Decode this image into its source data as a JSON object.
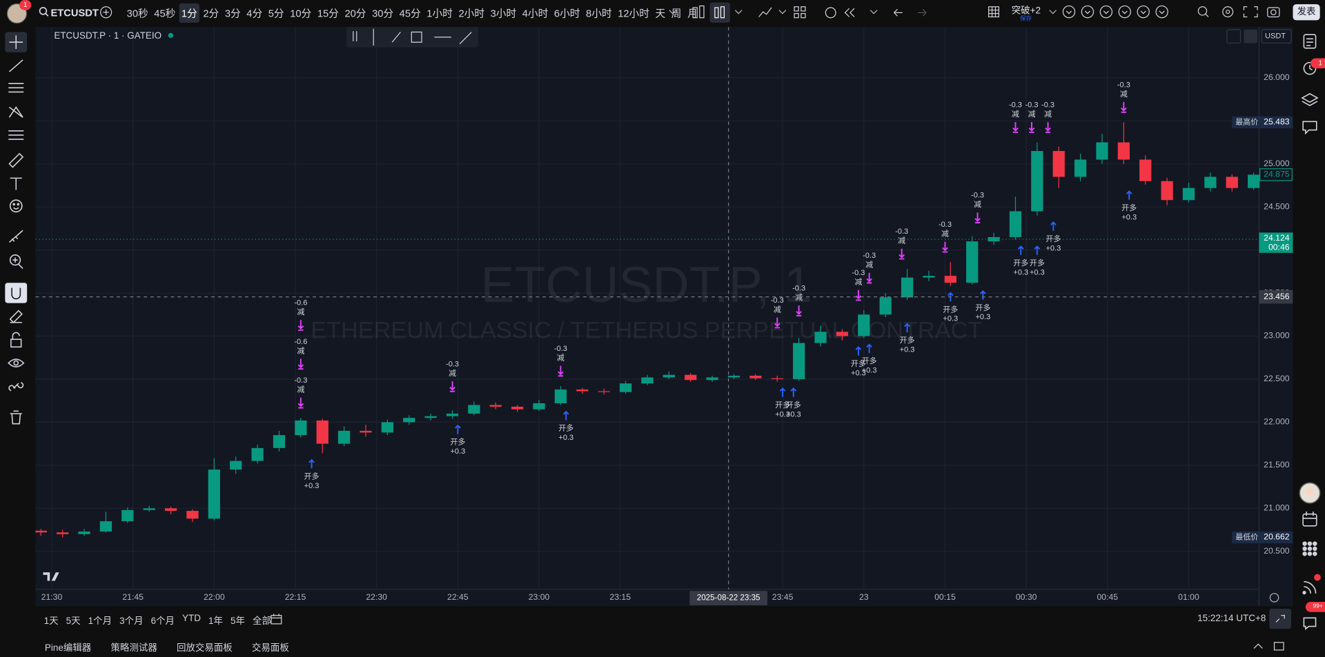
{
  "toolbar": {
    "symbol": "ETCUSDT",
    "badge": "1",
    "intervals": [
      "30秒",
      "45秒",
      "1分",
      "2分",
      "3分",
      "4分",
      "5分",
      "10分",
      "15分",
      "20分",
      "30分",
      "45分",
      "1小时",
      "2小时",
      "3小时",
      "4小时",
      "6小时",
      "8小时",
      "12小时",
      "天",
      "周",
      "月"
    ],
    "active_interval": "1分",
    "strategy": "突破+2",
    "save": "保存",
    "publish": "发表"
  },
  "chart_data": {
    "type": "candlestick",
    "legend": "ETCUSDT.P · 1 · GATEIO",
    "watermark": "ETCUSDT.P, 1",
    "watermark_sub": "ETHEREUM CLASSIC / TETHERUS PERPETUAL CONTRACT",
    "currency": "USDT",
    "up_color": "#089981",
    "down_color": "#f23645",
    "sell_color": "#e040fb",
    "buy_color": "#2962ff",
    "grid": true,
    "x": [
      "21:28",
      "21:32",
      "21:36",
      "21:40",
      "21:44",
      "21:48",
      "21:52",
      "21:56",
      "22:00",
      "22:04",
      "22:08",
      "22:12",
      "22:16",
      "22:20",
      "22:24",
      "22:28",
      "22:32",
      "22:36",
      "22:40",
      "22:44",
      "22:48",
      "22:52",
      "22:56",
      "23:00",
      "23:04",
      "23:08",
      "23:12",
      "23:16",
      "23:20",
      "23:24",
      "23:28",
      "23:32",
      "23:36",
      "23:40",
      "23:44",
      "23:48",
      "23:52",
      "23:56",
      "00:00",
      "00:04",
      "00:08",
      "00:12",
      "00:16",
      "00:20",
      "00:24",
      "00:28",
      "00:32",
      "00:36",
      "00:40",
      "00:44",
      "00:48",
      "00:52",
      "00:56",
      "01:00",
      "01:04",
      "01:08",
      "01:12"
    ],
    "open": [
      20.74,
      20.72,
      20.7,
      20.73,
      20.85,
      20.98,
      21.0,
      20.97,
      20.88,
      21.45,
      21.55,
      21.7,
      21.85,
      22.02,
      21.75,
      21.9,
      21.88,
      22.0,
      22.05,
      22.07,
      22.1,
      22.2,
      22.18,
      22.15,
      22.22,
      22.38,
      22.36,
      22.35,
      22.45,
      22.52,
      22.55,
      22.49,
      22.52,
      22.54,
      22.51,
      22.5,
      22.92,
      23.05,
      23.0,
      23.25,
      23.45,
      23.68,
      23.7,
      23.62,
      24.1,
      24.15,
      24.45,
      25.15,
      24.85,
      25.05,
      25.25,
      25.05,
      24.8,
      24.58,
      24.72,
      24.85,
      24.72
    ],
    "high": [
      20.76,
      20.75,
      20.76,
      20.96,
      21.01,
      21.03,
      21.02,
      20.99,
      21.58,
      21.6,
      21.74,
      21.9,
      22.05,
      22.04,
      21.95,
      21.97,
      22.03,
      22.08,
      22.1,
      22.14,
      22.24,
      22.23,
      22.2,
      22.26,
      22.42,
      22.4,
      22.39,
      22.48,
      22.55,
      22.59,
      22.57,
      22.54,
      22.56,
      22.56,
      22.54,
      22.98,
      23.12,
      23.08,
      23.3,
      23.5,
      23.78,
      23.76,
      23.86,
      24.16,
      24.2,
      24.62,
      25.25,
      25.2,
      25.12,
      25.35,
      25.483,
      25.1,
      24.84,
      24.78,
      24.9,
      24.88,
      24.9
    ],
    "low": [
      20.68,
      20.662,
      20.68,
      20.72,
      20.83,
      20.96,
      20.93,
      20.84,
      20.86,
      21.4,
      21.52,
      21.66,
      21.82,
      21.64,
      21.72,
      21.83,
      21.85,
      21.97,
      22.02,
      22.04,
      22.08,
      22.15,
      22.12,
      22.13,
      22.2,
      22.33,
      22.32,
      22.33,
      22.43,
      22.5,
      22.47,
      22.47,
      22.5,
      22.49,
      22.47,
      22.48,
      22.88,
      22.95,
      22.98,
      23.22,
      23.42,
      23.64,
      23.58,
      23.6,
      24.06,
      24.12,
      24.4,
      24.72,
      24.8,
      25.0,
      25.0,
      24.76,
      24.52,
      24.55,
      24.68,
      24.68,
      24.7
    ],
    "close": [
      20.72,
      20.7,
      20.73,
      20.85,
      20.98,
      21.0,
      20.97,
      20.88,
      21.45,
      21.55,
      21.7,
      21.85,
      22.02,
      21.75,
      21.9,
      21.88,
      22.0,
      22.05,
      22.07,
      22.1,
      22.2,
      22.18,
      22.15,
      22.22,
      22.38,
      22.36,
      22.35,
      22.45,
      22.52,
      22.55,
      22.49,
      22.52,
      22.54,
      22.51,
      22.5,
      22.92,
      23.05,
      23.0,
      23.25,
      23.45,
      23.68,
      23.7,
      23.62,
      24.1,
      24.15,
      24.45,
      25.15,
      24.85,
      25.05,
      25.25,
      25.05,
      24.8,
      24.58,
      24.72,
      24.85,
      24.72,
      24.875
    ],
    "xlim": [
      "21:27",
      "01:13"
    ],
    "ylim": [
      20.06,
      26.59
    ],
    "yticks": [
      {
        "value": 20.5,
        "label": "20.500"
      },
      {
        "value": 21,
        "label": "21.000"
      },
      {
        "value": 21.5,
        "label": "21.500"
      },
      {
        "value": 22,
        "label": "22.000"
      },
      {
        "value": 22.5,
        "label": "22.500"
      },
      {
        "value": 23,
        "label": "23.000"
      },
      {
        "value": 23.5,
        "label": "23.500"
      },
      {
        "value": 24,
        "label": "24.000"
      },
      {
        "value": 24.5,
        "label": "24.500"
      },
      {
        "value": 25,
        "label": "25.000"
      },
      {
        "value": 25.5,
        "label": "25.500"
      },
      {
        "value": 26,
        "label": "26.000"
      }
    ],
    "xticks": [
      "21:30",
      "21:45",
      "22:00",
      "22:15",
      "22:30",
      "22:45",
      "23:00",
      "23:15",
      "23:45",
      {
        "value": "00:00",
        "label": "23"
      },
      "00:15",
      "00:30",
      "00:45",
      "01:00"
    ],
    "crosshair": {
      "x": "23:35",
      "x_label": "2025-08-22   23:35",
      "y": 23.456
    },
    "high_marker": {
      "label": "最高价",
      "value": 25.483
    },
    "low_marker": {
      "label": "最低价",
      "value": 20.662
    },
    "last_price": 24.875,
    "line_price": {
      "value": 24.124,
      "countdown": "00:46"
    },
    "sell_signals": [
      {
        "time": "22:16",
        "amount": "-0.3",
        "label": "减"
      },
      {
        "time": "22:16",
        "amount": "-0.6",
        "label": "减"
      },
      {
        "time": "22:16",
        "amount": "-0.6",
        "label": "减"
      },
      {
        "time": "22:44",
        "amount": "-0.3",
        "label": "减"
      },
      {
        "time": "23:04",
        "amount": "-0.3",
        "label": "减"
      },
      {
        "time": "23:44",
        "amount": "-0.3",
        "label": "减"
      },
      {
        "time": "23:48",
        "amount": "-0.3",
        "label": "减"
      },
      {
        "time": "23:59",
        "amount": "-0.3",
        "label": "减"
      },
      {
        "time": "00:01",
        "amount": "-0.3",
        "label": "减"
      },
      {
        "time": "00:07",
        "amount": "-0.3",
        "label": "减"
      },
      {
        "time": "00:15",
        "amount": "-0.3",
        "label": "减"
      },
      {
        "time": "00:21",
        "amount": "-0.3",
        "label": "减"
      },
      {
        "time": "00:28",
        "amount": "-0.3",
        "label": "减"
      },
      {
        "time": "00:31",
        "amount": "-0.3",
        "label": "减"
      },
      {
        "time": "00:34",
        "amount": "-0.3",
        "label": "减"
      },
      {
        "time": "00:48",
        "amount": "-0.3",
        "label": "减"
      }
    ],
    "buy_signals": [
      {
        "time": "22:18",
        "label": "开多",
        "amount": "+0.3"
      },
      {
        "time": "22:45",
        "label": "开多",
        "amount": "+0.3"
      },
      {
        "time": "23:05",
        "label": "开多",
        "amount": "+0.3"
      },
      {
        "time": "23:45",
        "label": "开多",
        "amount": "+0.3"
      },
      {
        "time": "23:47",
        "label": "开多",
        "amount": "+0.3"
      },
      {
        "time": "23:59",
        "label": "开多",
        "amount": "+0.3"
      },
      {
        "time": "00:01",
        "label": "开多",
        "amount": "+0.3"
      },
      {
        "time": "00:08",
        "label": "开多",
        "amount": "+0.3"
      },
      {
        "time": "00:16",
        "label": "开多",
        "amount": "+0.3"
      },
      {
        "time": "00:22",
        "label": "开多",
        "amount": "+0.3"
      },
      {
        "time": "00:29",
        "label": "开多",
        "amount": "+0.3"
      },
      {
        "time": "00:32",
        "label": "开多",
        "amount": "+0.3"
      },
      {
        "time": "00:35",
        "label": "开多",
        "amount": "+0.3"
      },
      {
        "time": "00:49",
        "label": "开多",
        "amount": "+0.3"
      }
    ]
  },
  "bottom_bar": {
    "ranges": [
      "1天",
      "5天",
      "1个月",
      "3个月",
      "6个月",
      "YTD",
      "1年",
      "5年",
      "全部"
    ],
    "clock": "15:22:14 UTC+8"
  },
  "panels": [
    "Pine编辑器",
    "策略测试器",
    "回放交易面板",
    "交易面板"
  ],
  "sidebar": {
    "alert_badge": "1",
    "notifications": "99+"
  }
}
